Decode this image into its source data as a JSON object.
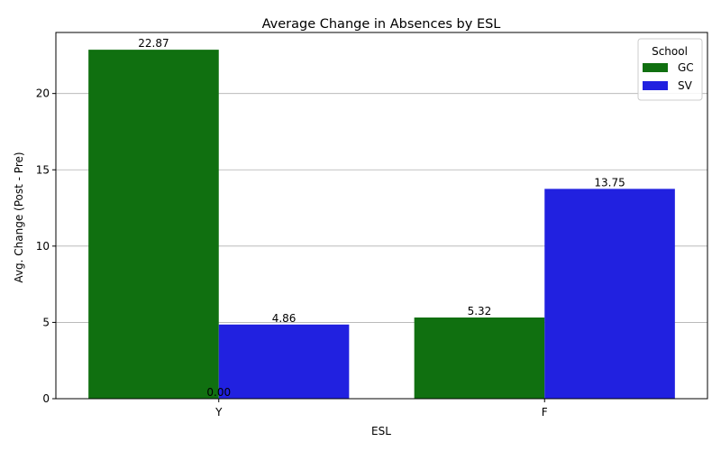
{
  "chart_data": {
    "type": "bar",
    "title": "Average Change in Absences by ESL",
    "xlabel": "ESL",
    "ylabel": "Avg. Change (Post - Pre)",
    "categories": [
      "Y",
      "F"
    ],
    "series": [
      {
        "name": "GC",
        "values": [
          22.87,
          5.32
        ],
        "color": "#107010"
      },
      {
        "name": "SV",
        "values": [
          4.86,
          13.75
        ],
        "color": "#2121e0"
      }
    ],
    "ylim": [
      0,
      24
    ],
    "yticks": [
      0,
      5,
      10,
      15,
      20
    ],
    "ytick_labels": [
      "0",
      "5",
      "10",
      "15",
      "20"
    ],
    "grid": "y",
    "legend": {
      "title": "School",
      "position": "top-right"
    },
    "annotations": [
      {
        "text": "0.00",
        "x": "Y"
      }
    ]
  }
}
